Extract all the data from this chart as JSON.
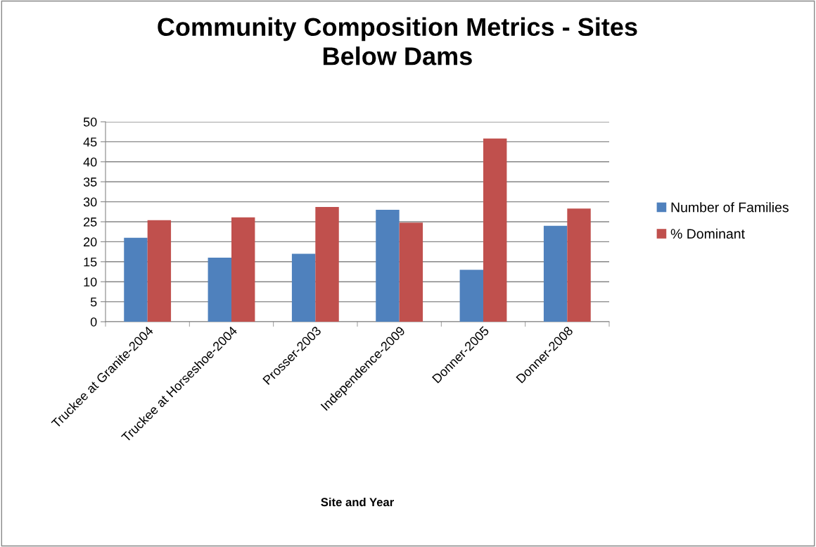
{
  "chart_data": {
    "type": "bar",
    "title": "Community Composition Metrics - Sites\nBelow Dams",
    "xlabel": "Site and Year",
    "categories": [
      "Truckee at Granite-2004",
      "Truckee at Horseshoe-2004",
      "Prosser-2003",
      "Independence-2009",
      "Donner-2005",
      "Donner-2008"
    ],
    "series": [
      {
        "name": "Number of Families",
        "color": "#4f81bd",
        "values": [
          21,
          16,
          17,
          28,
          13,
          24
        ]
      },
      {
        "name": "% Dominant",
        "color": "#c0504d",
        "values": [
          25.4,
          26.1,
          28.7,
          24.8,
          45.8,
          28.3
        ]
      }
    ],
    "ylim": [
      0,
      50
    ],
    "yticks": [
      0,
      5,
      10,
      15,
      20,
      25,
      30,
      35,
      40,
      45,
      50
    ],
    "grid": "y",
    "legend": "right"
  }
}
